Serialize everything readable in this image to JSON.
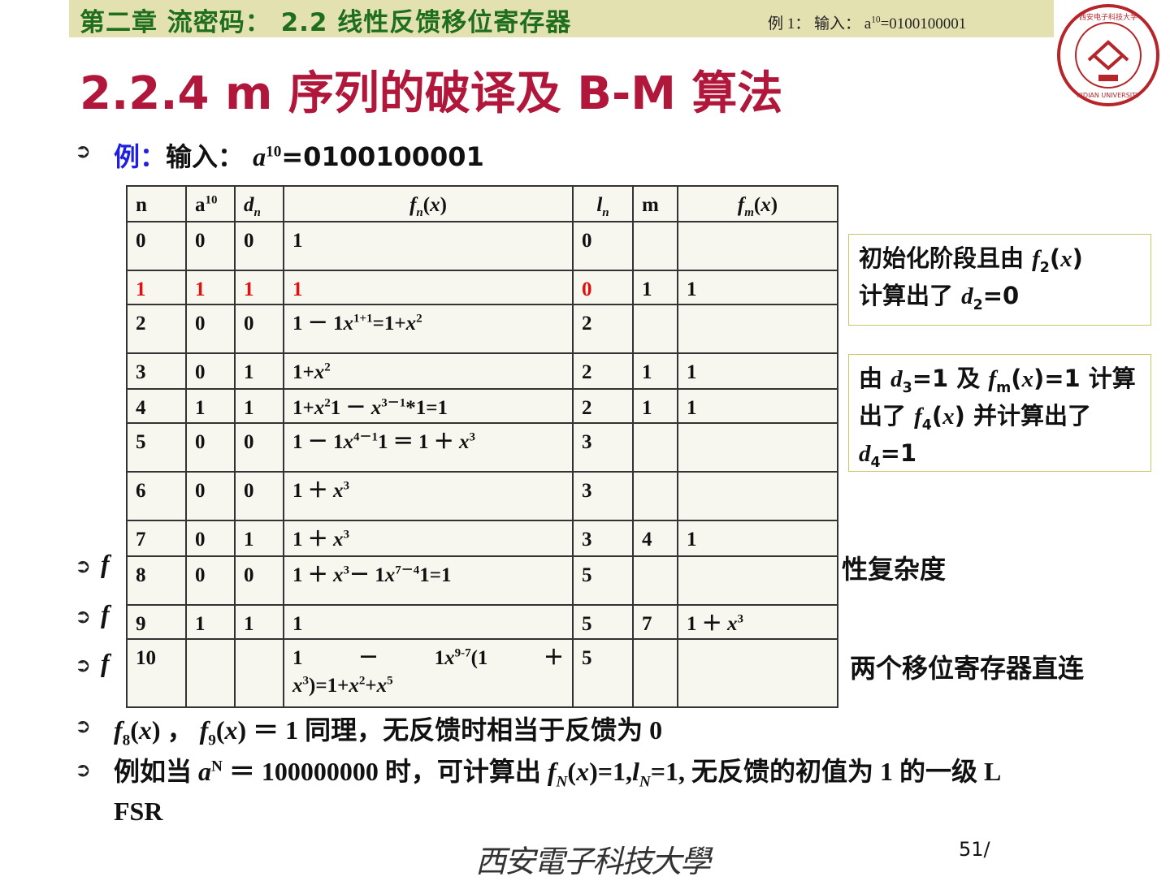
{
  "header": {
    "chapter": "第二章 流密码： 2.2 线性反馈移位寄存器",
    "overlay_prefix": "例 1： 输入： a",
    "overlay_sup": "10",
    "overlay_suffix": "=0100100001"
  },
  "title": "2.2.4 m 序列的破译及 B-M 算法",
  "example": {
    "label": "例：",
    "text": "输入：",
    "var": "a",
    "sup": "10",
    "value": "=0100100001"
  },
  "table": {
    "headers": [
      [
        {
          "t": "n"
        }
      ],
      [
        {
          "t": "a"
        },
        {
          "t": "10",
          "s": "sup"
        }
      ],
      [
        {
          "t": "d",
          "s": "i"
        },
        {
          "t": "n",
          "s": "subi"
        }
      ],
      [
        {
          "t": "f",
          "s": "i"
        },
        {
          "t": "n",
          "s": "subi"
        },
        {
          "t": "("
        },
        {
          "t": "x",
          "s": "i"
        },
        {
          "t": ")"
        }
      ],
      [
        {
          "t": "l",
          "s": "i"
        },
        {
          "t": "n",
          "s": "subi"
        }
      ],
      [
        {
          "t": "m"
        }
      ],
      [
        {
          "t": "f",
          "s": "i"
        },
        {
          "t": "m",
          "s": "subi"
        },
        {
          "t": "("
        },
        {
          "t": "x",
          "s": "i"
        },
        {
          "t": ")"
        }
      ]
    ],
    "rows": [
      {
        "highlight": false,
        "cells": [
          [
            {
              "t": "0"
            }
          ],
          [
            {
              "t": "0"
            }
          ],
          [
            {
              "t": "0"
            }
          ],
          [
            {
              "t": "1"
            }
          ],
          [
            {
              "t": "0"
            }
          ],
          [],
          []
        ]
      },
      {
        "highlight": true,
        "cells": [
          [
            {
              "t": "1"
            }
          ],
          [
            {
              "t": "1"
            }
          ],
          [
            {
              "t": "1"
            }
          ],
          [
            {
              "t": "1"
            }
          ],
          [
            {
              "t": "0"
            }
          ],
          [
            {
              "t": "1",
              "plain": true
            }
          ],
          [
            {
              "t": "1",
              "plain": true
            }
          ]
        ]
      },
      {
        "highlight": false,
        "cells": [
          [
            {
              "t": "2"
            }
          ],
          [
            {
              "t": "0"
            }
          ],
          [
            {
              "t": "0"
            }
          ],
          [
            {
              "t": "1 － 1"
            },
            {
              "t": "x",
              "s": "i"
            },
            {
              "t": "1+1",
              "s": "sup"
            },
            {
              "t": "=1+"
            },
            {
              "t": "x",
              "s": "i"
            },
            {
              "t": "2",
              "s": "sup"
            }
          ],
          [
            {
              "t": "2"
            }
          ],
          [],
          []
        ]
      },
      {
        "highlight": false,
        "cells": [
          [
            {
              "t": "3"
            }
          ],
          [
            {
              "t": "0"
            }
          ],
          [
            {
              "t": "1"
            }
          ],
          [
            {
              "t": "1+"
            },
            {
              "t": "x",
              "s": "i"
            },
            {
              "t": "2",
              "s": "sup"
            }
          ],
          [
            {
              "t": "2"
            }
          ],
          [
            {
              "t": "1"
            }
          ],
          [
            {
              "t": "1"
            }
          ]
        ]
      },
      {
        "highlight": false,
        "cells": [
          [
            {
              "t": "4"
            }
          ],
          [
            {
              "t": "1"
            }
          ],
          [
            {
              "t": "1"
            }
          ],
          [
            {
              "t": "1+"
            },
            {
              "t": "x",
              "s": "i"
            },
            {
              "t": "2",
              "s": "sup"
            },
            {
              "t": "1 － "
            },
            {
              "t": "x",
              "s": "i"
            },
            {
              "t": "3－1",
              "s": "sup"
            },
            {
              "t": "*1=1"
            }
          ],
          [
            {
              "t": "2"
            }
          ],
          [
            {
              "t": "1"
            }
          ],
          [
            {
              "t": "1"
            }
          ]
        ]
      },
      {
        "highlight": false,
        "cells": [
          [
            {
              "t": "5"
            }
          ],
          [
            {
              "t": "0"
            }
          ],
          [
            {
              "t": "0"
            }
          ],
          [
            {
              "t": "1 － 1"
            },
            {
              "t": "x",
              "s": "i"
            },
            {
              "t": "4－1",
              "s": "sup"
            },
            {
              "t": "1 ＝ 1 ＋ "
            },
            {
              "t": "x",
              "s": "i"
            },
            {
              "t": "3",
              "s": "sup"
            }
          ],
          [
            {
              "t": "3"
            }
          ],
          [],
          []
        ]
      },
      {
        "highlight": false,
        "cells": [
          [
            {
              "t": "6"
            }
          ],
          [
            {
              "t": "0"
            }
          ],
          [
            {
              "t": "0"
            }
          ],
          [
            {
              "t": "1 ＋ "
            },
            {
              "t": "x",
              "s": "i"
            },
            {
              "t": "3",
              "s": "sup"
            }
          ],
          [
            {
              "t": "3"
            }
          ],
          [],
          []
        ]
      },
      {
        "highlight": false,
        "cells": [
          [
            {
              "t": "7"
            }
          ],
          [
            {
              "t": "0"
            }
          ],
          [
            {
              "t": "1"
            }
          ],
          [
            {
              "t": "1 ＋ "
            },
            {
              "t": "x",
              "s": "i"
            },
            {
              "t": "3",
              "s": "sup"
            }
          ],
          [
            {
              "t": "3"
            }
          ],
          [
            {
              "t": "4"
            }
          ],
          [
            {
              "t": "1"
            }
          ]
        ]
      },
      {
        "highlight": false,
        "cells": [
          [
            {
              "t": "8"
            }
          ],
          [
            {
              "t": "0"
            }
          ],
          [
            {
              "t": "0"
            }
          ],
          [
            {
              "t": "1 ＋ "
            },
            {
              "t": "x",
              "s": "i"
            },
            {
              "t": "3",
              "s": "sup"
            },
            {
              "t": "－ 1"
            },
            {
              "t": "x",
              "s": "i"
            },
            {
              "t": "7－4",
              "s": "sup"
            },
            {
              "t": "1=1"
            }
          ],
          [
            {
              "t": "5"
            }
          ],
          [],
          []
        ]
      },
      {
        "highlight": false,
        "cells": [
          [
            {
              "t": "9"
            }
          ],
          [
            {
              "t": "1"
            }
          ],
          [
            {
              "t": "1"
            }
          ],
          [
            {
              "t": "1"
            }
          ],
          [
            {
              "t": "5"
            }
          ],
          [
            {
              "t": "7"
            }
          ],
          [
            {
              "t": "1 ＋ "
            },
            {
              "t": "x",
              "s": "i"
            },
            {
              "t": "3",
              "s": "sup"
            }
          ]
        ]
      },
      {
        "highlight": false,
        "cells": [
          [
            {
              "t": "10"
            }
          ],
          [],
          [],
          [
            {
              "t": "1 　 － 　 1"
            },
            {
              "t": "x",
              "s": "i"
            },
            {
              "t": "9-7",
              "s": "sup"
            },
            {
              "t": "(1 　 ＋ "
            },
            {
              "t": "x",
              "s": "i"
            },
            {
              "t": "3",
              "s": "sup"
            },
            {
              "t": ")=1+"
            },
            {
              "t": "x",
              "s": "i"
            },
            {
              "t": "2",
              "s": "sup"
            },
            {
              "t": "+"
            },
            {
              "t": "x",
              "s": "i"
            },
            {
              "t": "5",
              "s": "sup"
            }
          ],
          [
            {
              "t": "5"
            }
          ],
          [],
          []
        ]
      }
    ]
  },
  "notes": [
    {
      "parts": [
        {
          "t": "初始化阶段且由 "
        },
        {
          "t": "f",
          "s": "i"
        },
        {
          "t": "2",
          "s": "sub"
        },
        {
          "t": "("
        },
        {
          "t": "x",
          "s": "i"
        },
        {
          "t": ")"
        },
        {
          "br": true
        },
        {
          "t": "计算出了 "
        },
        {
          "t": "d",
          "s": "i"
        },
        {
          "t": "2",
          "s": "sub"
        },
        {
          "t": "=0"
        }
      ]
    },
    {
      "parts": [
        {
          "t": "由 "
        },
        {
          "t": "d",
          "s": "i"
        },
        {
          "t": "3",
          "s": "sub"
        },
        {
          "t": "=1 及 "
        },
        {
          "t": "f",
          "s": "i"
        },
        {
          "t": "m",
          "s": "sub"
        },
        {
          "t": "("
        },
        {
          "t": "x",
          "s": "i"
        },
        {
          "t": ")=1 计算"
        },
        {
          "br": true
        },
        {
          "t": "出了 "
        },
        {
          "t": "f",
          "s": "i"
        },
        {
          "t": "4",
          "s": "sub"
        },
        {
          "t": "("
        },
        {
          "t": "x",
          "s": "i"
        },
        {
          "t": ") 并计算出了"
        },
        {
          "br": true
        },
        {
          "t": "d",
          "s": "i"
        },
        {
          "t": "4",
          "s": "sub"
        },
        {
          "t": "=1"
        }
      ]
    }
  ],
  "bullets": {
    "b1_start": "f",
    "b1_end": "性复杂度",
    "b2_start": "f",
    "b3_start": "f",
    "b3_end": "两个移位寄存器直连",
    "b4": [
      {
        "t": "f",
        "s": "i"
      },
      {
        "t": "8",
        "s": "sub"
      },
      {
        "t": "("
      },
      {
        "t": "x",
        "s": "i"
      },
      {
        "t": ") ， "
      },
      {
        "t": "f",
        "s": "i"
      },
      {
        "t": "9",
        "s": "sub"
      },
      {
        "t": "("
      },
      {
        "t": "x",
        "s": "i"
      },
      {
        "t": ") ＝ 1 同理，无反馈时相当于反馈为 0"
      }
    ],
    "b5": [
      {
        "t": "例如当 "
      },
      {
        "t": "a",
        "s": "i"
      },
      {
        "t": "N",
        "s": "sup"
      },
      {
        "t": " ＝ 100000000 时，可计算出 "
      },
      {
        "t": "f",
        "s": "i"
      },
      {
        "t": "N",
        "s": "subi"
      },
      {
        "t": "("
      },
      {
        "t": "x",
        "s": "i"
      },
      {
        "t": ")=1,"
      },
      {
        "t": "l",
        "s": "i"
      },
      {
        "t": "N",
        "s": "subi"
      },
      {
        "t": "=1, 无反馈的初值为 1 的一级 L"
      },
      {
        "br": true
      },
      {
        "t": "FSR"
      }
    ]
  },
  "footer": {
    "university": "西安電子科技大學",
    "page": "51/"
  },
  "logo": {
    "text": "西安电子科技大学 XIDIAN UNIVERSITY 1931"
  },
  "colors": {
    "title": "#b0173a",
    "header_bg": "#e3e1b0",
    "header_text": "#1e6e1e",
    "highlight": "#e01010",
    "example_label": "#1f1fe0"
  }
}
